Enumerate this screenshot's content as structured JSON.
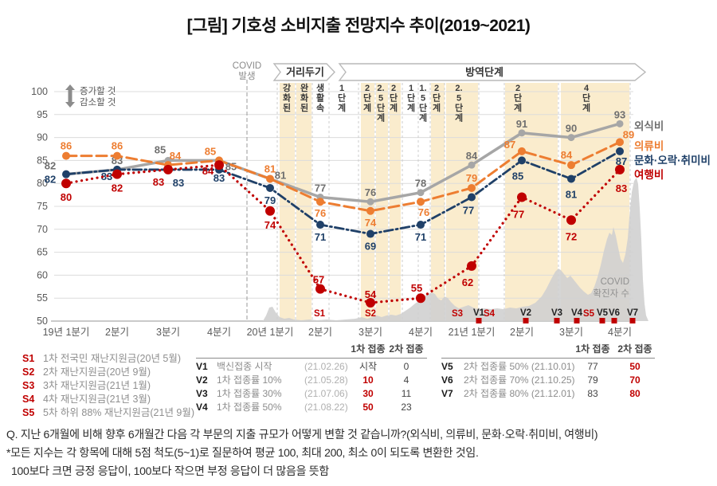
{
  "title": "[그림] 기호성 소비지출 전망지수 추이(2019~2021)",
  "y_axis": {
    "ticks": [
      100,
      95,
      90,
      85,
      80,
      75,
      70,
      65,
      60,
      55,
      50
    ],
    "up_label": "증가할 것",
    "down_label": "감소할 것"
  },
  "covid_outbreak": {
    "line1": "COVID",
    "line2": "발생"
  },
  "phase_banners": {
    "distancing": "거리두기",
    "quarantine": "방역단계"
  },
  "stages": [
    {
      "label": "강화된",
      "highlighted": true
    },
    {
      "label": "완화된",
      "highlighted": true
    },
    {
      "label": "생활속",
      "highlighted": false
    },
    {
      "label": "1단계",
      "highlighted": false
    },
    {
      "label": "2단계",
      "highlighted": true
    },
    {
      "label": "2.5단계",
      "highlighted": true
    },
    {
      "label": "2단계",
      "highlighted": true
    },
    {
      "label": "1단계",
      "highlighted": false
    },
    {
      "label": "1.5단계",
      "highlighted": false
    },
    {
      "label": "2단계",
      "highlighted": true
    },
    {
      "label": "2.5단계",
      "highlighted": true
    },
    {
      "label": "2단계",
      "highlighted": true
    },
    {
      "label": "4단계",
      "highlighted": true
    }
  ],
  "chart_data": {
    "type": "line",
    "categories": [
      "19년 1분기",
      "2분기",
      "3분기",
      "4분기",
      "20년 1분기",
      "2분기",
      "3분기",
      "4분기",
      "21년 1분기",
      "2분기",
      "3분기",
      "4분기"
    ],
    "ylim": [
      50,
      100
    ],
    "grid": true,
    "legend_position": "right",
    "series": [
      {
        "name": "외식비",
        "key": "dining-out",
        "color": "#a6a6a6",
        "label_color": "#6f6f6f",
        "style": "solid",
        "values": [
          82,
          83,
          85,
          85,
          81,
          77,
          76,
          78,
          84,
          91,
          90,
          93
        ]
      },
      {
        "name": "의류비",
        "key": "clothing",
        "color": "#ED7D31",
        "label_color": "#ED7D31",
        "style": "dashed",
        "values": [
          86,
          86,
          84,
          85,
          81,
          76,
          74,
          76,
          79,
          87,
          84,
          89
        ]
      },
      {
        "name": "문화·오락·취미비",
        "key": "culture-leisure-hobby",
        "color": "#1F4068",
        "label_color": "#1F4068",
        "style": "dashdot",
        "values": [
          82,
          83,
          83,
          83,
          79,
          71,
          69,
          71,
          77,
          85,
          81,
          87
        ]
      },
      {
        "name": "여행비",
        "key": "travel",
        "color": "#C00000",
        "label_color": "#C00000",
        "style": "dotted",
        "values": [
          80,
          82,
          83,
          84,
          74,
          57,
          54,
          55,
          62,
          77,
          72,
          83
        ]
      }
    ],
    "covid_cases_area": {
      "label_line1": "COVID",
      "label_line2": "확진자 수"
    }
  },
  "event_markers": {
    "s": [
      {
        "id": "S1"
      },
      {
        "id": "S2"
      },
      {
        "id": "S3"
      },
      {
        "id": "S4"
      },
      {
        "id": "S5"
      }
    ],
    "v": [
      {
        "id": "V1"
      },
      {
        "id": "V2"
      },
      {
        "id": "V3"
      },
      {
        "id": "V4"
      },
      {
        "id": "V5"
      },
      {
        "id": "V6"
      },
      {
        "id": "V7"
      }
    ]
  },
  "stimulus_legend": [
    {
      "id": "S1",
      "text": "1차 전국민 재난지원금(20년 5월)"
    },
    {
      "id": "S2",
      "text": "2차 재난지원금(20년 9월)"
    },
    {
      "id": "S3",
      "text": "3차 재난지원금(21년 1월)"
    },
    {
      "id": "S4",
      "text": "4차 재난지원금(21년 3월)"
    },
    {
      "id": "S5",
      "text": "5차 하위 88% 재난지원금(21년 9월)"
    }
  ],
  "vaccine_tables": {
    "dose1_header": "1차 접종",
    "dose2_header": "2차 접종",
    "left": [
      {
        "id": "V1",
        "desc": "백신접종 시작",
        "date": "(21.02.26)",
        "dose1": "시작",
        "dose2": "0"
      },
      {
        "id": "V2",
        "desc": "1차 접종률 10%",
        "date": "(21.05.28)",
        "dose1": "10",
        "dose2": "4"
      },
      {
        "id": "V3",
        "desc": "1차 접종률 30%",
        "date": "(21.07.06)",
        "dose1": "30",
        "dose2": "11"
      },
      {
        "id": "V4",
        "desc": "1차 접종률 50%",
        "date": "(21.08.22)",
        "dose1": "50",
        "dose2": "23"
      }
    ],
    "right": [
      {
        "id": "V5",
        "desc": "2차 접종률 50% (21.10.01)",
        "dose1": "77",
        "dose2": "50"
      },
      {
        "id": "V6",
        "desc": "2차 접종률 70% (21.10.25)",
        "dose1": "79",
        "dose2": "70"
      },
      {
        "id": "V7",
        "desc": "2차 접종률 80% (21.12.01)",
        "dose1": "83",
        "dose2": "80"
      }
    ]
  },
  "footnotes": [
    "Q. 지난 6개월에 비해 향후 6개월간 다음 각 부문의 지출 규모가 어떻게 변할 것 같습니까?(외식비, 의류비, 문화·오락·취미비, 여행비)",
    "*모든 지수는 각 항목에 대해 5점 척도(5~1)로 질문하여 평균 100, 최대 200, 최소 0이 되도록 변환한 것임.",
    "100보다 크면 긍정 응답이, 100보다 작으면 부정 응답이 더 많음을 뜻함"
  ]
}
